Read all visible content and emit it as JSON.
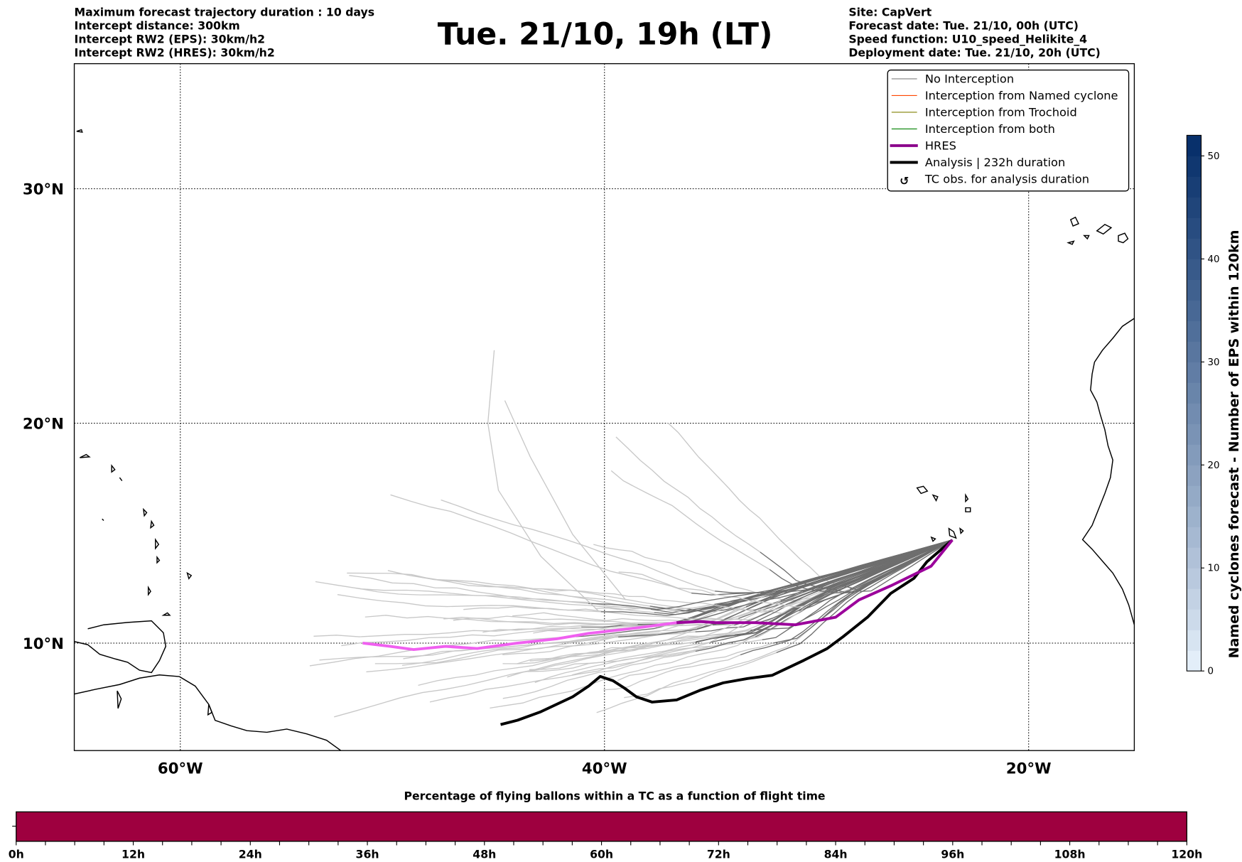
{
  "header": {
    "left": [
      "Maximum forecast trajectory duration : 10 days",
      "Intercept distance: 300km",
      "Intercept RW2 (EPS):  30km/h2",
      "Intercept RW2 (HRES): 30km/h2"
    ],
    "title": "Tue. 21/10, 19h (LT)",
    "right": [
      "Site: CapVert",
      "Forecast date: Tue. 21/10, 00h (UTC)",
      "Speed function: U10_speed_Helikite_4",
      "Deployment date: Tue. 21/10, 20h (UTC)"
    ]
  },
  "chart_data": {
    "type": "line",
    "map": {
      "lon_range": [
        -65,
        -15
      ],
      "lat_range": [
        5.5,
        35
      ],
      "projection": "mercator",
      "grid": true,
      "xticks": [
        {
          "lon": -60,
          "label": "60°W"
        },
        {
          "lon": -40,
          "label": "40°W"
        },
        {
          "lon": -20,
          "label": "20°W"
        }
      ],
      "yticks": [
        {
          "lat": 10,
          "label": "10°N"
        },
        {
          "lat": 20,
          "label": "20°N"
        },
        {
          "lat": 30,
          "label": "30°N"
        }
      ]
    },
    "legend": {
      "placement": "top-right",
      "items": [
        {
          "label": "No Interception",
          "color": "#808080",
          "style": "thin"
        },
        {
          "label": "Interception from Named cyclone",
          "color": "#ff4500",
          "style": "thin"
        },
        {
          "label": "Interception from Trochoid",
          "color": "#808000",
          "style": "thin"
        },
        {
          "label": "Interception from both",
          "color": "#008000",
          "style": "thin"
        },
        {
          "label": "HRES",
          "color": "#8b008b",
          "style": "thick"
        },
        {
          "label": "Analysis | 232h duration",
          "color": "#000000",
          "style": "thick"
        },
        {
          "label": "TC obs. for analysis duration",
          "color": "#000000",
          "style": "marker",
          "symbol": "↺"
        }
      ]
    },
    "release_point": [
      -23.6,
      14.75
    ],
    "hres_track": [
      [
        -23.6,
        14.75
      ],
      [
        -24.6,
        13.55
      ],
      [
        -26.5,
        12.65
      ],
      [
        -28.0,
        12.0
      ],
      [
        -29.1,
        11.2
      ],
      [
        -31.0,
        10.85
      ],
      [
        -32.9,
        10.95
      ],
      [
        -34.75,
        10.95
      ],
      [
        -35.5,
        11.0
      ],
      [
        -36.6,
        10.95
      ],
      [
        -38.5,
        10.7
      ],
      [
        -40.75,
        10.45
      ],
      [
        -42.25,
        10.2
      ],
      [
        -44.1,
        10.0
      ],
      [
        -46.0,
        9.75
      ],
      [
        -47.5,
        9.85
      ],
      [
        -49.0,
        9.7
      ],
      [
        -50.1,
        9.85
      ],
      [
        -51.4,
        10.0
      ]
    ],
    "analysis_track": [
      [
        -23.6,
        14.75
      ],
      [
        -24.8,
        13.75
      ],
      [
        -25.4,
        13.0
      ],
      [
        -26.5,
        12.3
      ],
      [
        -27.6,
        11.2
      ],
      [
        -28.75,
        10.3
      ],
      [
        -29.5,
        9.75
      ],
      [
        -30.6,
        9.2
      ],
      [
        -32.1,
        8.5
      ],
      [
        -33.25,
        8.35
      ],
      [
        -34.4,
        8.15
      ],
      [
        -35.5,
        7.8
      ],
      [
        -36.6,
        7.35
      ],
      [
        -37.75,
        7.25
      ],
      [
        -38.5,
        7.5
      ],
      [
        -39.05,
        7.9
      ],
      [
        -39.6,
        8.25
      ],
      [
        -40.2,
        8.45
      ],
      [
        -40.75,
        8.0
      ],
      [
        -41.5,
        7.5
      ],
      [
        -42.25,
        7.15
      ],
      [
        -43.0,
        6.8
      ],
      [
        -44.1,
        6.4
      ],
      [
        -44.9,
        6.2
      ]
    ],
    "colorbar": {
      "label": "Named cyclones forecast - Number of EPS within 120km",
      "range": [
        0,
        52
      ],
      "ticks": [
        "0",
        "10",
        "20",
        "30",
        "40",
        "50"
      ],
      "cmap_low": "#e3eef9",
      "cmap_high": "#08306b"
    },
    "timebar": {
      "title": "Percentage of flying ballons within a TC as a function of flight time",
      "range_h": [
        0,
        120
      ],
      "color": "#9e003f",
      "ticks": [
        "0h",
        "12h",
        "24h",
        "36h",
        "48h",
        "60h",
        "72h",
        "84h",
        "96h",
        "108h",
        "120h"
      ]
    }
  }
}
